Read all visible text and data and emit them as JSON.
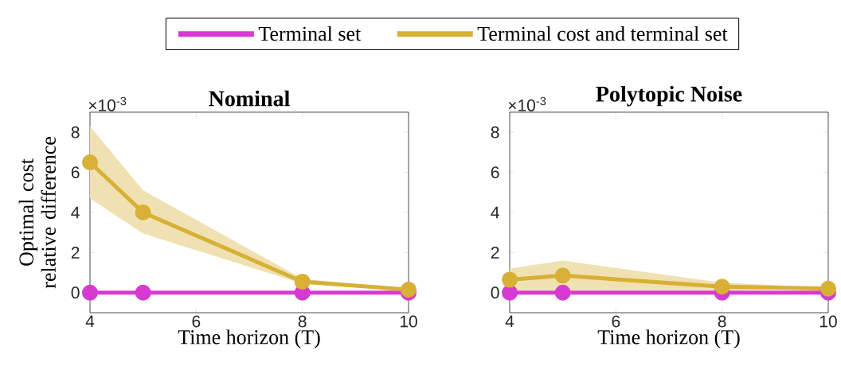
{
  "chart_data": [
    {
      "type": "line",
      "title": "Nominal",
      "xlabel": "Time horizon (T)",
      "ylabel": "Optimal cost relative difference",
      "annotations": [
        "×10$^{-3}$"
      ],
      "x": [
        4,
        5,
        8,
        10
      ],
      "xlim": [
        4,
        10
      ],
      "xticks": [
        4,
        6,
        8,
        10
      ],
      "ylim": [
        -1,
        9
      ],
      "yticks": [
        0,
        2,
        4,
        6,
        8
      ],
      "marker": "circle",
      "legend": "top",
      "series": [
        {
          "name": "Terminal set",
          "color": "#d63ad0",
          "values": [
            0,
            0,
            0,
            0
          ]
        },
        {
          "name": "Terminal cost and terminal set",
          "color": "#d7b035",
          "values": [
            6.5,
            4.0,
            0.55,
            0.15
          ],
          "lower": [
            4.7,
            2.95,
            0.45,
            0.1
          ],
          "upper": [
            8.3,
            5.1,
            0.7,
            0.15
          ]
        }
      ]
    },
    {
      "type": "line",
      "title": "Polytopic Noise",
      "xlabel": "Time horizon (T)",
      "annotations": [
        "×10$^{-3}$"
      ],
      "x": [
        4,
        5,
        8,
        10
      ],
      "xlim": [
        4,
        10
      ],
      "xticks": [
        4,
        6,
        8,
        10
      ],
      "ylim": [
        -1,
        9
      ],
      "yticks": [
        0,
        2,
        4,
        6,
        8
      ],
      "marker": "circle",
      "series": [
        {
          "color": "#d63ad0",
          "values": [
            0,
            0,
            0,
            0
          ]
        },
        {
          "color": "#d7b035",
          "values": [
            0.65,
            0.85,
            0.3,
            0.2
          ],
          "lower": [
            0.1,
            0.1,
            0.1,
            0.2
          ],
          "upper": [
            1.2,
            1.6,
            0.5,
            0.25
          ]
        }
      ]
    }
  ]
}
